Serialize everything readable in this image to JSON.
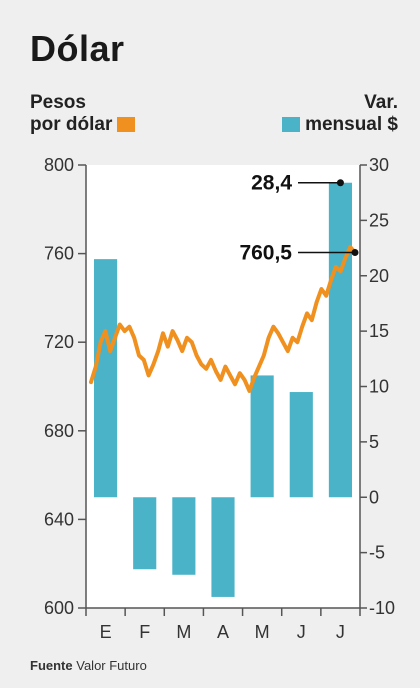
{
  "title": "Dólar",
  "left_axis_label": [
    "Pesos",
    "por dólar"
  ],
  "right_axis_label": [
    "Var.",
    "mensual $"
  ],
  "source_label": "Fuente",
  "source_value": "Valor Futuro",
  "colors": {
    "line": "#f0901e",
    "bars": "#4ab3c8",
    "plot_bg": "#ffffff",
    "axis": "#555555"
  },
  "chart_data": {
    "type": "bar+line",
    "categories": [
      "E",
      "F",
      "M",
      "A",
      "M",
      "J",
      "J"
    ],
    "left_axis": {
      "ylim": [
        600,
        800
      ],
      "ticks": [
        800,
        760,
        720,
        680,
        640,
        600
      ]
    },
    "right_axis": {
      "ylim": [
        -10,
        30
      ],
      "ticks": [
        30,
        25,
        20,
        15,
        10,
        5,
        0,
        -5,
        -10
      ]
    },
    "bars": {
      "axis": "right",
      "values": [
        21.5,
        -6.5,
        -7.0,
        -9.0,
        11.0,
        9.5,
        28.4
      ]
    },
    "line": {
      "axis": "left",
      "values": [
        702,
        709,
        720,
        725,
        716,
        722,
        728,
        725,
        727,
        722,
        714,
        712,
        705,
        710,
        716,
        724,
        718,
        725,
        721,
        716,
        722,
        720,
        714,
        710,
        708,
        712,
        707,
        703,
        709,
        705,
        701,
        706,
        703,
        698,
        704,
        709,
        714,
        722,
        727,
        724,
        720,
        716,
        722,
        720,
        727,
        733,
        730,
        738,
        744,
        741,
        748,
        754,
        752,
        758,
        763,
        760.5
      ]
    },
    "annotations": [
      {
        "text": "28,4",
        "series": "bars",
        "value": 28.4
      },
      {
        "text": "760,5",
        "series": "line",
        "value": 760.5
      }
    ]
  }
}
